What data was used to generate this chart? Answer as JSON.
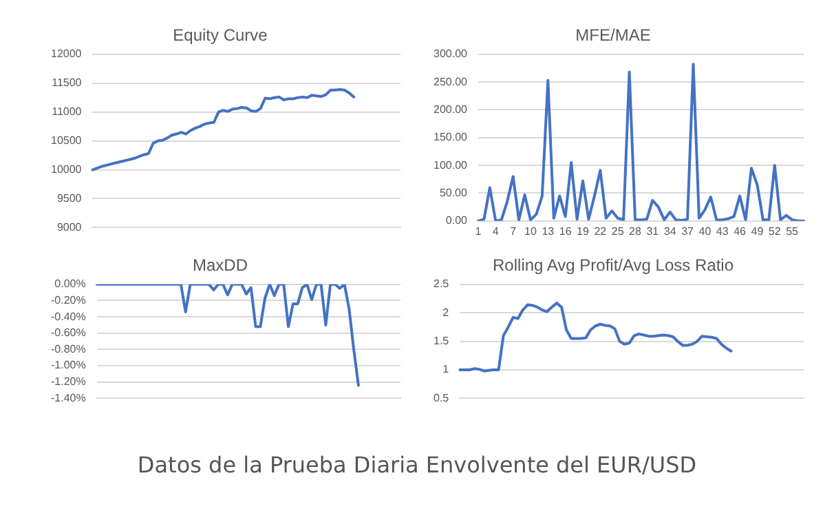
{
  "chart_data": [
    {
      "type": "line",
      "title": "Equity Curve",
      "categories": [
        null,
        null,
        null,
        null,
        null,
        null,
        null,
        null,
        null,
        null,
        null,
        null,
        null,
        null,
        null,
        null,
        null,
        null,
        null,
        null,
        null,
        null,
        null,
        null,
        null,
        null,
        null,
        null,
        null,
        null,
        null,
        null,
        null,
        null,
        null,
        null,
        null,
        null,
        null,
        null,
        null,
        null,
        null,
        null,
        null,
        null,
        null,
        null,
        null,
        null,
        null,
        null,
        null,
        null,
        null,
        null,
        null,
        null,
        null,
        null,
        null,
        null,
        null,
        null,
        null,
        null,
        null
      ],
      "series": [
        {
          "color": "#4472c4",
          "values": [
            10000,
            10030,
            10060,
            10080,
            10100,
            10120,
            10140,
            10160,
            10180,
            10200,
            10230,
            10260,
            10280,
            10460,
            10500,
            10510,
            10550,
            10600,
            10620,
            10650,
            10620,
            10680,
            10720,
            10750,
            10790,
            10810,
            10820,
            11000,
            11030,
            11010,
            11050,
            11060,
            11080,
            11070,
            11020,
            11010,
            11060,
            11240,
            11230,
            11250,
            11260,
            11210,
            11230,
            11230,
            11250,
            11260,
            11250,
            11290,
            11280,
            11270,
            11300,
            11380,
            11380,
            11390,
            11380,
            11330,
            11260,
            null,
            null,
            null,
            null,
            null,
            null,
            null,
            null,
            null,
            null
          ]
        }
      ],
      "ylim": [
        9000,
        12000
      ],
      "yticks": [
        9000,
        9500,
        10000,
        10500,
        11000,
        11500,
        12000
      ],
      "grid": "y",
      "legend": false,
      "tick_labels": "y",
      "marker": "none",
      "line_style": "solid"
    },
    {
      "type": "line",
      "title": "MFE/MAE",
      "categories": [
        "1",
        null,
        null,
        "4",
        null,
        null,
        "7",
        null,
        null,
        "10",
        null,
        null,
        "13",
        null,
        null,
        "16",
        null,
        null,
        "19",
        null,
        null,
        "22",
        null,
        null,
        "25",
        null,
        null,
        "28",
        null,
        null,
        "31",
        null,
        null,
        "34",
        null,
        null,
        "37",
        null,
        null,
        "40",
        null,
        null,
        "43",
        null,
        null,
        "46",
        null,
        null,
        "49",
        null,
        null,
        "52",
        null,
        null,
        "55",
        null,
        null
      ],
      "series": [
        {
          "color": "#4472c4",
          "values": [
            0,
            3,
            60,
            0,
            2,
            35,
            80,
            2,
            47,
            2,
            12,
            45,
            253,
            5,
            45,
            8,
            105,
            3,
            72,
            3,
            45,
            91,
            5,
            18,
            5,
            2,
            268,
            2,
            2,
            3,
            37,
            25,
            2,
            16,
            2,
            1,
            3,
            282,
            5,
            20,
            43,
            2,
            2,
            4,
            8,
            45,
            2,
            95,
            65,
            2,
            2,
            100,
            2,
            10,
            2,
            0,
            0
          ]
        }
      ],
      "ylim": [
        0,
        300
      ],
      "yticks": [
        {
          "value": 0,
          "label": "0.00"
        },
        {
          "value": 50,
          "label": "50.00"
        },
        {
          "value": 100,
          "label": "100.00"
        },
        {
          "value": 150,
          "label": "150.00"
        },
        {
          "value": 200,
          "label": "200.00"
        },
        {
          "value": 250,
          "label": "250.00"
        },
        {
          "value": 300,
          "label": "300.00"
        }
      ],
      "grid": "y",
      "legend": false,
      "marker": "none",
      "line_style": "solid"
    },
    {
      "type": "line",
      "title": "MaxDD",
      "categories": [
        null,
        null,
        null,
        null,
        null,
        null,
        null,
        null,
        null,
        null,
        null,
        null,
        null,
        null,
        null,
        null,
        null,
        null,
        null,
        null,
        null,
        null,
        null,
        null,
        null,
        null,
        null,
        null,
        null,
        null,
        null,
        null,
        null,
        null,
        null,
        null,
        null,
        null,
        null,
        null,
        null,
        null,
        null,
        null,
        null,
        null,
        null,
        null,
        null,
        null,
        null,
        null,
        null,
        null,
        null,
        null,
        null,
        null,
        null,
        null,
        null,
        null,
        null,
        null,
        null,
        null
      ],
      "series": [
        {
          "color": "#4472c4",
          "values": [
            0,
            0,
            0,
            0,
            0,
            0,
            0,
            0,
            0,
            0,
            0,
            0,
            0,
            0,
            0,
            0,
            0,
            0,
            0,
            -0.34,
            0,
            0,
            0,
            0,
            0,
            -0.07,
            0,
            0,
            -0.13,
            0,
            0,
            0,
            -0.12,
            -0.04,
            -0.52,
            -0.52,
            -0.17,
            0,
            -0.14,
            0,
            0,
            -0.52,
            -0.24,
            -0.24,
            -0.04,
            0,
            -0.19,
            0,
            0,
            -0.5,
            0,
            0,
            -0.05,
            0,
            -0.3,
            -0.8,
            -1.24,
            null,
            null,
            null,
            null,
            null,
            null,
            null,
            null,
            null
          ]
        }
      ],
      "ylim": [
        -1.4,
        0
      ],
      "yticks": [
        {
          "value": -1.4,
          "label": "-1.40%"
        },
        {
          "value": -1.2,
          "label": "-1.20%"
        },
        {
          "value": -1,
          "label": "-1.00%"
        },
        {
          "value": -0.8,
          "label": "-0.80%"
        },
        {
          "value": -0.6,
          "label": "-0.60%"
        },
        {
          "value": -0.4,
          "label": "-0.40%"
        },
        {
          "value": -0.2,
          "label": "-0.20%"
        },
        {
          "value": 0,
          "label": "0.00%"
        }
      ],
      "grid": "y",
      "legend": false,
      "tick_labels": "y",
      "marker": "none",
      "line_style": "solid"
    },
    {
      "type": "line",
      "title": "Rolling Avg Profit/Avg Loss Ratio",
      "categories": [
        null,
        null,
        null,
        null,
        null,
        null,
        null,
        null,
        null,
        null,
        null,
        null,
        null,
        null,
        null,
        null,
        null,
        null,
        null,
        null,
        null,
        null,
        null,
        null,
        null,
        null,
        null,
        null,
        null,
        null,
        null,
        null,
        null,
        null,
        null,
        null,
        null,
        null,
        null,
        null,
        null,
        null,
        null,
        null,
        null,
        null,
        null,
        null,
        null,
        null,
        null,
        null,
        null,
        null,
        null,
        null,
        null,
        null,
        null,
        null,
        null,
        null,
        null,
        null,
        null,
        null,
        null,
        null,
        null,
        null,
        null,
        null
      ],
      "series": [
        {
          "color": "#4472c4",
          "values": [
            1,
            1,
            1,
            1.02,
            1.01,
            0.98,
            0.99,
            1,
            1,
            1.6,
            1.75,
            1.92,
            1.9,
            2.05,
            2.14,
            2.13,
            2.1,
            2.05,
            2.02,
            2.1,
            2.17,
            2.1,
            1.7,
            1.55,
            1.55,
            1.55,
            1.56,
            1.7,
            1.77,
            1.8,
            1.78,
            1.77,
            1.72,
            1.5,
            1.45,
            1.47,
            1.6,
            1.63,
            1.61,
            1.59,
            1.59,
            1.6,
            1.61,
            1.6,
            1.58,
            1.5,
            1.43,
            1.43,
            1.45,
            1.5,
            1.59,
            1.58,
            1.57,
            1.55,
            1.45,
            1.38,
            1.33,
            null,
            null,
            null,
            null,
            null,
            null,
            null,
            null,
            null,
            null,
            null,
            null,
            null,
            null,
            null
          ]
        }
      ],
      "ylim": [
        0.5,
        2.5
      ],
      "yticks": [
        0.5,
        1,
        1.5,
        2,
        2.5
      ],
      "grid": "y",
      "legend": false,
      "tick_labels": "y",
      "marker": "none",
      "line_style": "solid"
    },
    {
      "type": "other",
      "title": "Datos de la Prueba Diaria Envolvente del EUR/USD"
    }
  ]
}
